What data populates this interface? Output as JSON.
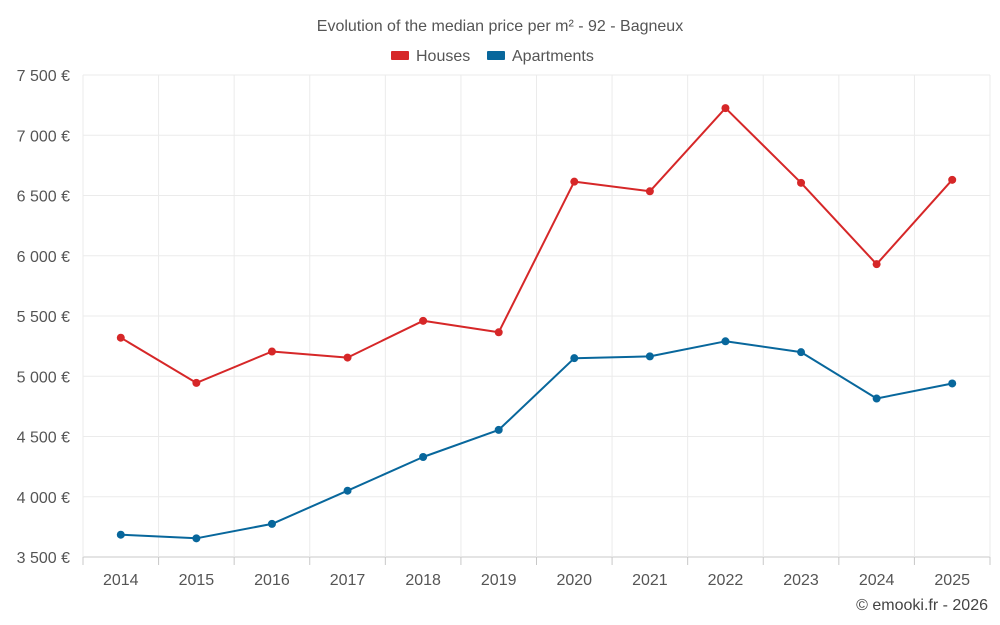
{
  "chart_data": {
    "type": "line",
    "title": "Evolution of the median price per m² - 92 - Bagneux",
    "categories": [
      "2014",
      "2015",
      "2016",
      "2017",
      "2018",
      "2019",
      "2020",
      "2021",
      "2022",
      "2023",
      "2024",
      "2025"
    ],
    "ylim": [
      3500,
      7500
    ],
    "yticks": [
      3500,
      4000,
      4500,
      5000,
      5500,
      6000,
      6500,
      7000,
      7500
    ],
    "ytick_labels": [
      "3 500 €",
      "4 000 €",
      "4 500 €",
      "5 000 €",
      "5 500 €",
      "6 000 €",
      "6 500 €",
      "7 000 €",
      "7 500 €"
    ],
    "grid": true,
    "legend_position": "top-center",
    "series": [
      {
        "name": "Houses",
        "color": "#d62728",
        "values": [
          5320,
          4945,
          5205,
          5155,
          5460,
          5365,
          6615,
          6535,
          7225,
          6605,
          5930,
          6630
        ]
      },
      {
        "name": "Apartments",
        "color": "#08679c",
        "values": [
          3685,
          3655,
          3775,
          4050,
          4330,
          4555,
          5150,
          5165,
          5290,
          5200,
          4815,
          4940
        ]
      }
    ],
    "credit": "© emooki.fr - 2026"
  }
}
